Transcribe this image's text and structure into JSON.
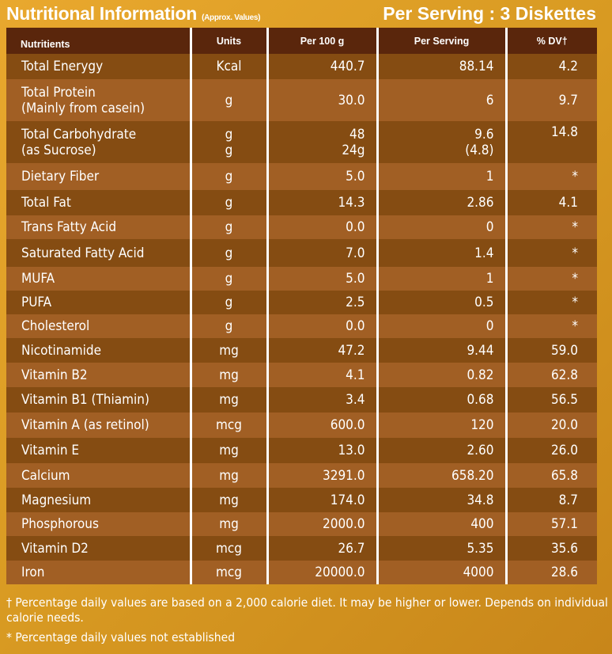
{
  "header": {
    "title": "Nutritional Information",
    "subtitle": "(Approx. Values)",
    "serving": "Per Serving : 3 Diskettes"
  },
  "columns": [
    "Nutritients",
    "Units",
    "Per 100 g",
    "Per Serving",
    "% DV†"
  ],
  "rows": [
    {
      "name": "Total Enerygy",
      "unit": "Kcal",
      "per100": "440.7",
      "serving": "88.14",
      "dv": "4.2"
    },
    {
      "name": "Total Protein",
      "name2": "(Mainly from casein)",
      "unit": "g",
      "per100": "30.0",
      "serving": "6",
      "dv": "9.7"
    },
    {
      "name": "Total Carbohydrate",
      "name2": "(as Sucrose)",
      "unit": "g",
      "unit2": "g",
      "per100": "48",
      "per100_2": "24g",
      "serving": "9.6",
      "serving2": "(4.8)",
      "dv": "14.8"
    },
    {
      "name": "Dietary Fiber",
      "unit": "g",
      "per100": "5.0",
      "serving": "1",
      "dv": "*"
    },
    {
      "name": "Total Fat",
      "unit": "g",
      "per100": "14.3",
      "serving": "2.86",
      "dv": "4.1"
    },
    {
      "name": "Trans Fatty Acid",
      "unit": "g",
      "per100": "0.0",
      "serving": "0",
      "dv": "*"
    },
    {
      "name": "Saturated Fatty Acid",
      "unit": "g",
      "per100": "7.0",
      "serving": "1.4",
      "dv": "*"
    },
    {
      "name": "MUFA",
      "unit": "g",
      "per100": "5.0",
      "serving": "1",
      "dv": "*"
    },
    {
      "name": "PUFA",
      "unit": "g",
      "per100": "2.5",
      "serving": "0.5",
      "dv": "*"
    },
    {
      "name": "Cholesterol",
      "unit": "g",
      "per100": "0.0",
      "serving": "0",
      "dv": "*"
    },
    {
      "name": "Nicotinamide",
      "unit": "mg",
      "per100": "47.2",
      "serving": "9.44",
      "dv": "59.0"
    },
    {
      "name": "Vitamin B2",
      "unit": "mg",
      "per100": "4.1",
      "serving": "0.82",
      "dv": "62.8"
    },
    {
      "name": "Vitamin B1 (Thiamin)",
      "unit": "mg",
      "per100": "3.4",
      "serving": "0.68",
      "dv": "56.5"
    },
    {
      "name": "Vitamin A (as retinol)",
      "unit": "mcg",
      "per100": "600.0",
      "serving": "120",
      "dv": "20.0"
    },
    {
      "name": "Vitamin E",
      "unit": "mg",
      "per100": "13.0",
      "serving": "2.60",
      "dv": "26.0"
    },
    {
      "name": "Calcium",
      "unit": "mg",
      "per100": "3291.0",
      "serving": "658.20",
      "dv": "65.8"
    },
    {
      "name": "Magnesium",
      "unit": "mg",
      "per100": "174.0",
      "serving": "34.8",
      "dv": "8.7"
    },
    {
      "name": "Phosphorous",
      "unit": "mg",
      "per100": "2000.0",
      "serving": "400",
      "dv": "57.1"
    },
    {
      "name": "Vitamin D2",
      "unit": "mcg",
      "per100": "26.7",
      "serving": "5.35",
      "dv": "35.6"
    },
    {
      "name": "Iron",
      "unit": "mcg",
      "per100": "20000.0",
      "serving": "4000",
      "dv": "28.6"
    }
  ],
  "footnotes": [
    "† Percentage daily values are based on a 2,000 calorie diet. It may be higher or lower. Depends on individual calorie needs.",
    "* Percentage daily values not established"
  ]
}
